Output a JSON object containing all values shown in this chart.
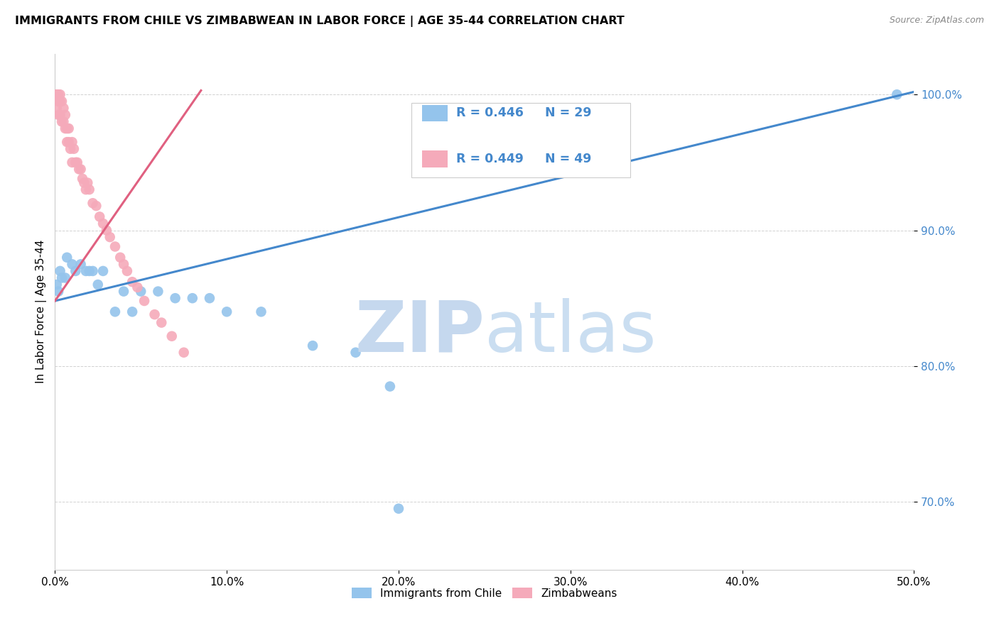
{
  "title": "IMMIGRANTS FROM CHILE VS ZIMBABWEAN IN LABOR FORCE | AGE 35-44 CORRELATION CHART",
  "source": "Source: ZipAtlas.com",
  "ylabel": "In Labor Force | Age 35-44",
  "xlim": [
    0.0,
    0.5
  ],
  "ylim": [
    0.65,
    1.03
  ],
  "xticks": [
    0.0,
    0.1,
    0.2,
    0.3,
    0.4,
    0.5
  ],
  "xtick_labels": [
    "0.0%",
    "10.0%",
    "20.0%",
    "30.0%",
    "40.0%",
    "50.0%"
  ],
  "yticks": [
    0.7,
    0.8,
    0.9,
    1.0
  ],
  "ytick_labels": [
    "70.0%",
    "80.0%",
    "90.0%",
    "100.0%"
  ],
  "chile_color": "#94C4EC",
  "zimbabwe_color": "#F5AABA",
  "chile_line_color": "#4488CC",
  "zimbabwe_line_color": "#E06080",
  "legend_r_chile": "R = 0.446",
  "legend_n_chile": "N = 29",
  "legend_r_zimbabwe": "R = 0.449",
  "legend_n_zimbabwe": "N = 49",
  "legend_label_chile": "Immigrants from Chile",
  "legend_label_zimbabwe": "Zimbabweans",
  "chile_x": [
    0.001,
    0.002,
    0.003,
    0.004,
    0.006,
    0.007,
    0.01,
    0.012,
    0.015,
    0.018,
    0.02,
    0.022,
    0.025,
    0.028,
    0.035,
    0.04,
    0.045,
    0.05,
    0.06,
    0.07,
    0.08,
    0.09,
    0.1,
    0.12,
    0.15,
    0.175,
    0.195,
    0.49,
    0.2
  ],
  "chile_y": [
    0.86,
    0.855,
    0.87,
    0.865,
    0.865,
    0.88,
    0.875,
    0.87,
    0.875,
    0.87,
    0.87,
    0.87,
    0.86,
    0.87,
    0.84,
    0.855,
    0.84,
    0.855,
    0.855,
    0.85,
    0.85,
    0.85,
    0.84,
    0.84,
    0.815,
    0.81,
    0.785,
    1.0,
    0.695
  ],
  "zimbabwe_x": [
    0.001,
    0.001,
    0.001,
    0.002,
    0.002,
    0.002,
    0.003,
    0.003,
    0.003,
    0.004,
    0.004,
    0.005,
    0.005,
    0.006,
    0.006,
    0.007,
    0.007,
    0.008,
    0.008,
    0.009,
    0.01,
    0.01,
    0.011,
    0.012,
    0.013,
    0.014,
    0.015,
    0.016,
    0.017,
    0.018,
    0.019,
    0.02,
    0.022,
    0.024,
    0.026,
    0.028,
    0.03,
    0.032,
    0.035,
    0.038,
    0.04,
    0.042,
    0.045,
    0.048,
    0.052,
    0.058,
    0.062,
    0.068,
    0.075
  ],
  "zimbabwe_y": [
    1.0,
    1.0,
    0.99,
    1.0,
    0.995,
    0.985,
    1.0,
    0.995,
    0.985,
    0.995,
    0.98,
    0.99,
    0.98,
    0.985,
    0.975,
    0.975,
    0.965,
    0.975,
    0.965,
    0.96,
    0.965,
    0.95,
    0.96,
    0.95,
    0.95,
    0.945,
    0.945,
    0.938,
    0.935,
    0.93,
    0.935,
    0.93,
    0.92,
    0.918,
    0.91,
    0.905,
    0.9,
    0.895,
    0.888,
    0.88,
    0.875,
    0.87,
    0.862,
    0.858,
    0.848,
    0.838,
    0.832,
    0.822,
    0.81
  ],
  "chile_trend_x": [
    0.0,
    0.5
  ],
  "chile_trend_y": [
    0.848,
    1.002
  ],
  "zimbabwe_trend_x": [
    0.0,
    0.085
  ],
  "zimbabwe_trend_y": [
    0.848,
    1.003
  ]
}
